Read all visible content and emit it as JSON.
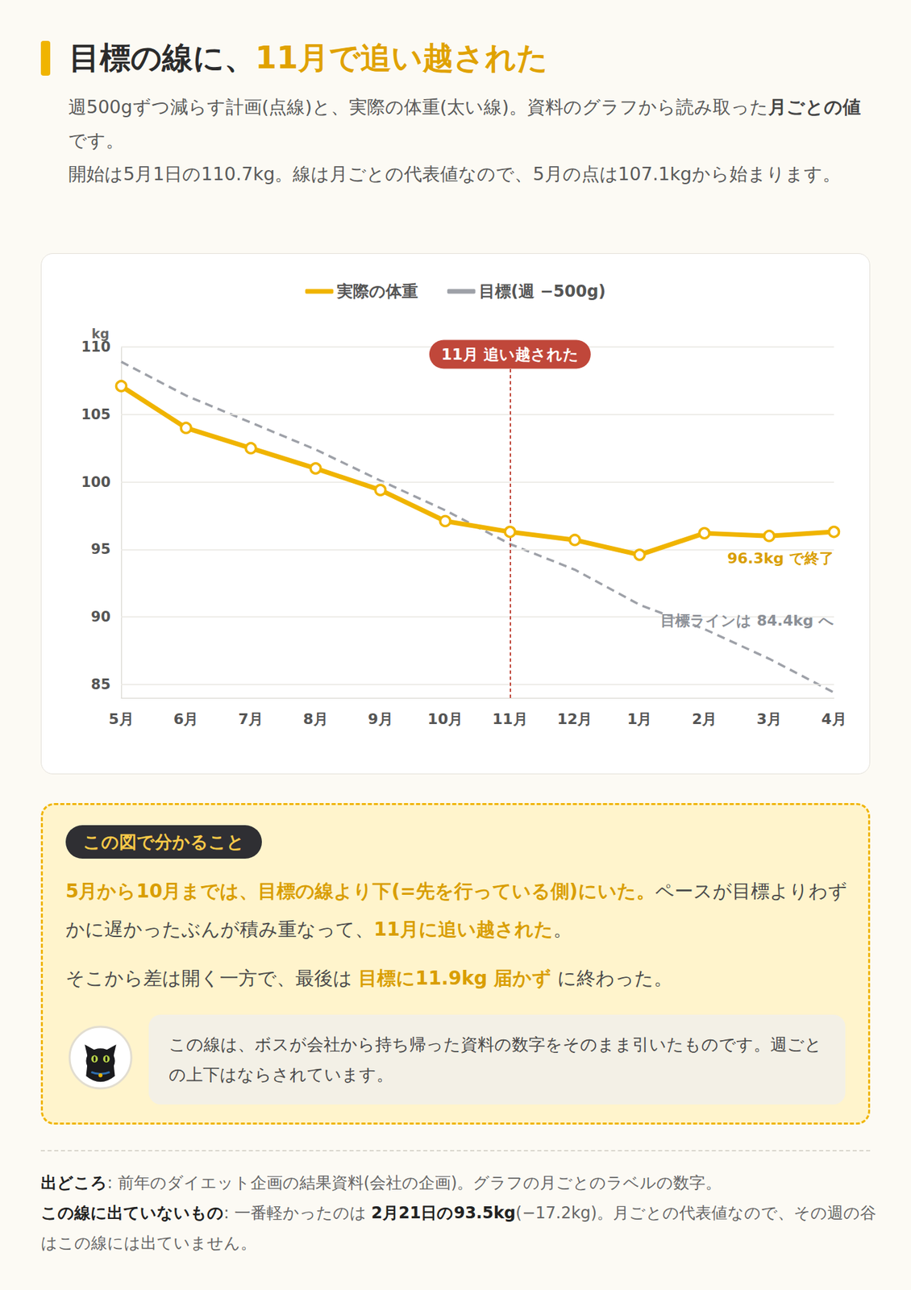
{
  "header": {
    "title": [
      {
        "text": "目標の線に、"
      },
      {
        "text": "11月で追い越された",
        "strong": true
      }
    ]
  },
  "intro": [
    [
      {
        "text": "週500gずつ減らす計画(点線)と、実際の体重(太い線)。資料のグラフから読み取った"
      },
      {
        "text": "月ごとの値",
        "strong": true
      },
      {
        "text": "です。"
      }
    ],
    [
      {
        "text": "開始は5月1日の110.7kg。線は月ごとの代表値なので、5月の点は107.1kgから始まります。"
      }
    ]
  ],
  "chart_data": {
    "type": "line",
    "y_label": "kg",
    "categories": [
      "5月",
      "6月",
      "7月",
      "8月",
      "9月",
      "10月",
      "11月",
      "12月",
      "1月",
      "2月",
      "3月",
      "4月"
    ],
    "series": [
      {
        "name": "実際の体重",
        "color": "#f0b400",
        "marker": "circle",
        "line_style": "solid",
        "values": [
          107.1,
          104.0,
          102.5,
          101.0,
          99.4,
          97.1,
          96.3,
          95.7,
          94.6,
          96.2,
          96.0,
          96.3
        ],
        "end_label": "96.3kg で終了"
      },
      {
        "name": "目標(週 −500g)",
        "color": "#9ea1a8",
        "marker": "none",
        "line_style": "dashed",
        "values": [
          108.9,
          106.4,
          104.4,
          102.4,
          100.1,
          97.9,
          95.4,
          93.5,
          90.9,
          89.1,
          86.9,
          84.4
        ],
        "end_label": "目標ラインは 84.4kg へ"
      }
    ],
    "ylim": [
      84,
      110
    ],
    "yticks": [
      85,
      90,
      95,
      100,
      105,
      110
    ],
    "grid": true,
    "legend": "top",
    "vline": {
      "x": "11月",
      "label": "11月 追い越された",
      "color": "#c0473a"
    }
  },
  "findings": {
    "badge": "この図で分かること",
    "paragraphs": [
      [
        {
          "text": "5月から10月までは、目標の線より下(=先を行っている側)にいた。",
          "strong": true
        },
        {
          "text": "ペースが目標よりわずかに遅かったぶんが積み重なって、"
        },
        {
          "text": "11月に追い越された",
          "strong": true
        },
        {
          "text": "。"
        }
      ],
      [
        {
          "text": "そこから差は開く一方で、最後は "
        },
        {
          "text": "目標に11.9kg 届かず",
          "strong": true
        },
        {
          "text": " に終わった。"
        }
      ]
    ],
    "note": "この線は、ボスが会社から持ち帰った資料の数字をそのまま引いたものです。週ごとの上下はならされています。"
  },
  "footer": [
    [
      {
        "text": "出どころ",
        "strong": true
      },
      {
        "text": ": 前年のダイエット企画の結果資料(会社の企画)。グラフの月ごとのラベルの数字。"
      }
    ],
    [
      {
        "text": "この線に出ていないもの",
        "strong": true
      },
      {
        "text": ": 一番軽かったのは "
      },
      {
        "text": "2月21日の93.5kg",
        "strong": true
      },
      {
        "text": "(−17.2kg)。月ごとの代表値なので、その週の谷はこの線には出ていません。"
      }
    ]
  ]
}
